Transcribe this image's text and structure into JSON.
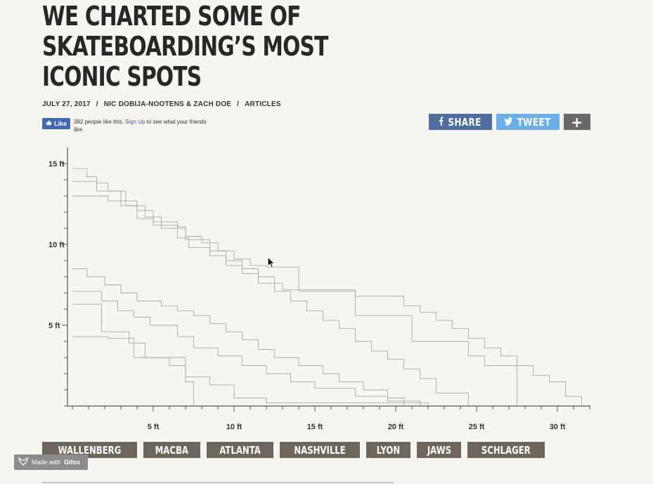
{
  "article": {
    "title": "WE CHARTED SOME OF SKATEBOARDING’S MOST ICONIC SPOTS",
    "date": "JULY 27, 2017",
    "authors": "NIC DOBIJA-NOOTENS & ZACH DOE",
    "section": "ARTICLES",
    "separator": "/"
  },
  "facebook": {
    "like_label": "Like",
    "count_text": "392 people like this.",
    "signup_label": "Sign Up",
    "signup_suffix": "to see what your friends like."
  },
  "share": {
    "facebook_label": "SHARE",
    "twitter_label": "TWEET",
    "more_label": "+"
  },
  "tags": [
    "WALLENBERG",
    "MACBA",
    "ATLANTA",
    "NASHVILLE",
    "LYON",
    "JAWS",
    "SCHLAGER"
  ],
  "badge": {
    "prefix": "Made with",
    "brand": "Gifox"
  },
  "colors": {
    "background": "#f7f5f0",
    "tag_bg": "#6e655b",
    "facebook": "#4f6d9e",
    "twitter": "#6aaeea",
    "line": "#9a9a9a"
  },
  "chart_data": {
    "type": "line",
    "title": "",
    "xlabel": "",
    "ylabel": "",
    "xlim": [
      0,
      32
    ],
    "ylim": [
      0,
      15.2
    ],
    "x_ticks": [
      "5 ft",
      "10 ft",
      "15 ft",
      "20 ft",
      "25 ft",
      "30 ft"
    ],
    "x_tick_values": [
      5,
      10,
      15,
      20,
      25,
      30
    ],
    "y_ticks": [
      "5 ft",
      "10 ft",
      "15 ft"
    ],
    "y_tick_values": [
      5,
      10,
      15
    ],
    "grid": false,
    "step": true,
    "series": [
      {
        "points": [
          [
            0,
            14.7
          ],
          [
            0.9,
            14.2
          ],
          [
            1.5,
            13.8
          ],
          [
            2.2,
            13.3
          ],
          [
            3.3,
            12.7
          ],
          [
            4.0,
            12.1
          ],
          [
            5.0,
            11.4
          ],
          [
            6.5,
            11.1
          ],
          [
            7.0,
            10.5
          ],
          [
            8.0,
            10.1
          ],
          [
            9.0,
            9.6
          ],
          [
            10.0,
            9.1
          ],
          [
            11.0,
            8.7
          ],
          [
            12.0,
            8.6
          ],
          [
            14.0,
            7.1
          ],
          [
            17.5,
            6.8
          ],
          [
            20.5,
            6.2
          ],
          [
            21.5,
            5.8
          ],
          [
            22.5,
            5.3
          ],
          [
            23.5,
            4.8
          ],
          [
            24.5,
            4.2
          ],
          [
            25.5,
            3.6
          ],
          [
            26.5,
            3.1
          ],
          [
            27.5,
            2.5
          ],
          [
            28.5,
            1.9
          ],
          [
            29.5,
            1.5
          ],
          [
            30.5,
            0.6
          ],
          [
            31.5,
            0
          ]
        ]
      },
      {
        "points": [
          [
            0,
            13.9
          ],
          [
            1.5,
            13.3
          ],
          [
            3.0,
            12.4
          ],
          [
            4.5,
            11.7
          ],
          [
            5.5,
            11.0
          ],
          [
            7.0,
            10.3
          ],
          [
            8.5,
            9.6
          ],
          [
            9.5,
            9.0
          ],
          [
            10.5,
            8.5
          ],
          [
            11.5,
            8.0
          ],
          [
            12.5,
            7.6
          ],
          [
            13.0,
            7.2
          ],
          [
            17.5,
            5.6
          ],
          [
            21.0,
            4.0
          ],
          [
            24.5,
            3.1
          ],
          [
            25.5,
            2.5
          ],
          [
            27.5,
            0
          ]
        ]
      },
      {
        "points": [
          [
            0,
            13.0
          ],
          [
            2.2,
            12.7
          ],
          [
            3.3,
            12.4
          ],
          [
            4.0,
            11.6
          ],
          [
            5.0,
            11.2
          ],
          [
            6.5,
            10.4
          ],
          [
            7.2,
            9.8
          ],
          [
            8.5,
            9.3
          ],
          [
            9.5,
            8.7
          ],
          [
            10.5,
            8.2
          ],
          [
            11.5,
            7.6
          ],
          [
            12.5,
            7.1
          ],
          [
            13.5,
            6.5
          ],
          [
            14.5,
            5.9
          ],
          [
            15.5,
            5.3
          ],
          [
            16.5,
            4.8
          ],
          [
            17.5,
            4.0
          ],
          [
            18.5,
            3.4
          ],
          [
            19.5,
            2.9
          ],
          [
            20.5,
            2.3
          ],
          [
            21.5,
            1.7
          ],
          [
            22.5,
            0.8
          ],
          [
            24.5,
            0
          ]
        ]
      },
      {
        "points": [
          [
            0,
            8.5
          ],
          [
            0.9,
            8.0
          ],
          [
            2.0,
            7.5
          ],
          [
            3.0,
            7.0
          ],
          [
            4.0,
            6.5
          ],
          [
            5.5,
            6.2
          ],
          [
            6.5,
            5.9
          ],
          [
            7.5,
            5.6
          ],
          [
            8.5,
            5.1
          ],
          [
            9.5,
            4.6
          ],
          [
            10.5,
            4.1
          ],
          [
            11.5,
            3.5
          ],
          [
            12.5,
            3.0
          ],
          [
            14.0,
            2.5
          ],
          [
            15.5,
            2.0
          ],
          [
            16.5,
            1.5
          ],
          [
            18.0,
            1.0
          ],
          [
            19.5,
            0.5
          ],
          [
            20.5,
            0
          ]
        ]
      },
      {
        "points": [
          [
            0,
            7.1
          ],
          [
            1.8,
            6.5
          ],
          [
            2.8,
            5.9
          ],
          [
            3.8,
            5.5
          ],
          [
            4.8,
            5.0
          ],
          [
            6.5,
            4.3
          ],
          [
            7.5,
            3.6
          ],
          [
            9.0,
            3.1
          ],
          [
            10.5,
            2.5
          ],
          [
            12.0,
            2.0
          ],
          [
            13.5,
            1.5
          ],
          [
            15.0,
            1.1
          ],
          [
            17.5,
            0.6
          ],
          [
            19.5,
            0.3
          ],
          [
            21.5,
            0
          ]
        ]
      },
      {
        "points": [
          [
            0,
            6.3
          ],
          [
            1.8,
            4.6
          ],
          [
            3.5,
            3.9
          ],
          [
            4.5,
            3.0
          ],
          [
            6.0,
            2.5
          ],
          [
            7.0,
            1.8
          ],
          [
            8.5,
            1.3
          ],
          [
            10.0,
            0.5
          ],
          [
            12.0,
            0.2
          ],
          [
            22.0,
            0
          ]
        ]
      },
      {
        "points": [
          [
            0,
            4.3
          ],
          [
            2.2,
            4.2
          ],
          [
            3.8,
            3.0
          ],
          [
            5.5,
            3.0
          ],
          [
            7.0,
            1.5
          ],
          [
            7.5,
            0
          ]
        ]
      }
    ]
  }
}
